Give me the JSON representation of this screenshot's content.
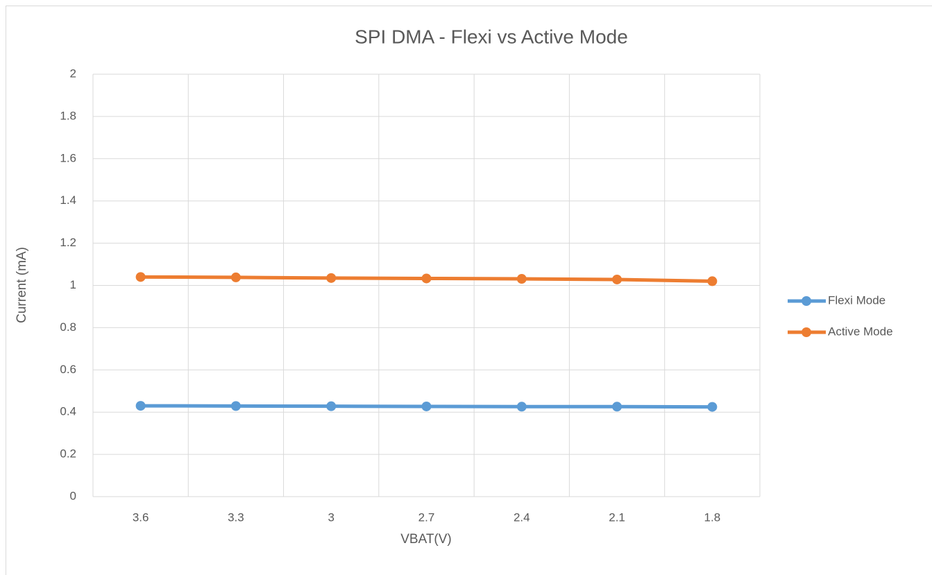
{
  "chart_data": {
    "type": "line",
    "title": "SPI DMA - Flexi vs Active Mode",
    "x_label": "VBAT(V)",
    "y_label": "Current (mA)",
    "categories": [
      "3.6",
      "3.3",
      "3",
      "2.7",
      "2.4",
      "2.1",
      "1.8"
    ],
    "series": [
      {
        "name": "Flexi Mode",
        "color": "#5b9bd5",
        "values": [
          0.43,
          0.429,
          0.428,
          0.427,
          0.426,
          0.426,
          0.425
        ]
      },
      {
        "name": "Active Mode",
        "color": "#ed7d31",
        "values": [
          1.04,
          1.038,
          1.035,
          1.033,
          1.031,
          1.028,
          1.02
        ]
      }
    ],
    "ylim": [
      0,
      2
    ],
    "yticks": [
      0,
      0.2,
      0.4,
      0.6,
      0.8,
      1,
      1.2,
      1.4,
      1.6,
      1.8,
      2
    ],
    "grid": true,
    "legend": "right"
  }
}
